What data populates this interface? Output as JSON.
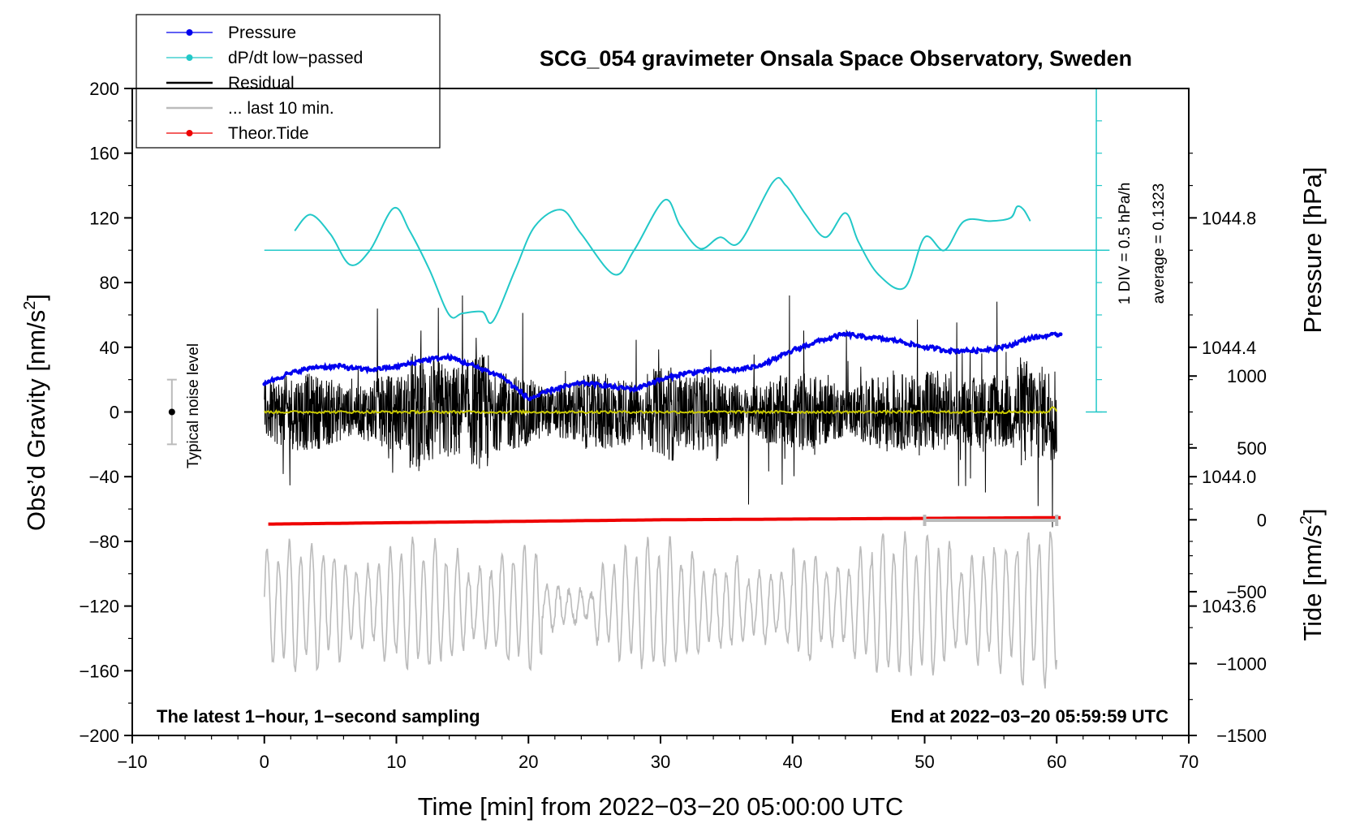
{
  "chart_data": {
    "type": "line",
    "title": "SCG_054 gravimeter Onsala Space Observatory, Sweden",
    "xlabel": "Time [min] from 2022−03−20 05:00:00 UTC",
    "ylabel_main": "Obs’d Gravity [nm/s",
    "ylabel_main_sup": "2",
    "ylabel_main_end": "]",
    "ylabel_pressure": "Pressure [hPa]",
    "ylabel_tide": "Tide [nm/s",
    "ylabel_tide_sup": "2",
    "ylabel_tide_end": "]",
    "xlim": [
      -10,
      70
    ],
    "ylim": [
      -200,
      200
    ],
    "pressure_lim": [
      1043.2,
      1045.2
    ],
    "tide_lim": [
      -1500,
      3000
    ],
    "x_ticks": [
      -10,
      0,
      10,
      20,
      30,
      40,
      50,
      60,
      70
    ],
    "x_tick_labels": [
      "−10",
      "0",
      "10",
      "20",
      "30",
      "40",
      "50",
      "60",
      "70"
    ],
    "y_ticks": [
      -200,
      -160,
      -120,
      -80,
      -40,
      0,
      40,
      80,
      120,
      160,
      200
    ],
    "y_tick_labels": [
      "−200",
      "−160",
      "−120",
      "−80",
      "−40",
      "0",
      "40",
      "80",
      "120",
      "160",
      "200"
    ],
    "pressure_ticks": [
      1043.6,
      1044.0,
      1044.4,
      1044.8
    ],
    "pressure_tick_labels": [
      "1043.6",
      "1044.0",
      "1044.4",
      "1044.8"
    ],
    "tide_ticks": [
      -1500,
      -1000,
      -500,
      0,
      500,
      1000
    ],
    "tide_tick_labels": [
      "−1500",
      "−1000",
      "−500",
      "0",
      "500",
      "1000"
    ],
    "legend": [
      {
        "label": "Pressure",
        "color": "#0000ee",
        "marker": true
      },
      {
        "label": "dP/dt low−passed",
        "color": "#22c8c8",
        "marker": true
      },
      {
        "label": "Residual",
        "color": "#000000",
        "marker": false
      },
      {
        "label": "... last 10 min.",
        "color": "#bbbbbb",
        "marker": false
      },
      {
        "label": "Theor.Tide",
        "color": "#ee0000",
        "marker": true
      }
    ],
    "series": [
      {
        "name": "Pressure",
        "axis": "pressure",
        "color": "#0000ee",
        "x": [
          0,
          2,
          4,
          6,
          8,
          10,
          12,
          14,
          16,
          18,
          20,
          22,
          24,
          26,
          28,
          30,
          32,
          34,
          36,
          38,
          40,
          42,
          44,
          46,
          48,
          50,
          52,
          54,
          56,
          58,
          60.3
        ],
        "values": [
          1044.29,
          1044.32,
          1044.34,
          1044.34,
          1044.33,
          1044.34,
          1044.36,
          1044.37,
          1044.34,
          1044.31,
          1044.24,
          1044.27,
          1044.29,
          1044.28,
          1044.27,
          1044.3,
          1044.32,
          1044.33,
          1044.33,
          1044.35,
          1044.39,
          1044.42,
          1044.44,
          1044.43,
          1044.42,
          1044.4,
          1044.39,
          1044.39,
          1044.4,
          1044.43,
          1044.44
        ]
      },
      {
        "name": "dP/dt low−passed",
        "axis": "main",
        "color": "#22c8c8",
        "x": [
          2.3,
          3.5,
          5,
          6.5,
          8,
          9.8,
          11,
          12.5,
          14,
          15,
          16.5,
          17.3,
          19,
          20.5,
          22.5,
          24,
          26.5,
          28,
          30.3,
          31.5,
          33,
          34.5,
          36,
          38.5,
          39.5,
          41,
          42.5,
          44,
          45,
          46.5,
          48.5,
          50,
          51.5,
          53,
          55,
          56.5,
          57,
          57.5,
          58
        ],
        "values": [
          112,
          122,
          110,
          91,
          100,
          126,
          112,
          88,
          60,
          61,
          62,
          56,
          88,
          115,
          125,
          110,
          85,
          100,
          131,
          115,
          101,
          108,
          105,
          142,
          140,
          122,
          108,
          123,
          105,
          85,
          77,
          108,
          100,
          118,
          118,
          120,
          127,
          125,
          118
        ]
      },
      {
        "name": "Residual",
        "axis": "main",
        "color": "#000000",
        "x": [
          0,
          5,
          10,
          15,
          20,
          25,
          30,
          35,
          40,
          45,
          50,
          55,
          60
        ],
        "values": [
          0,
          0,
          0,
          0,
          0,
          0,
          0,
          0,
          0,
          0,
          0,
          0,
          0
        ]
      },
      {
        "name": "Theor.Tide",
        "axis": "tide",
        "color": "#ee0000",
        "x": [
          0.3,
          10,
          20,
          30,
          40,
          50,
          60.3
        ],
        "values": [
          -30,
          -20,
          -10,
          0,
          5,
          10,
          15
        ]
      }
    ],
    "pressure_rate_reference": 100,
    "annotations": {
      "left_note": "The latest 1−hour, 1−second sampling",
      "right_note": "End at 2022−03−20 05:59:59 UTC",
      "scale_div": "1 DIV = 0.5 hPa/h",
      "scale_avg": "average = 0.1323",
      "noise_label": "Typical noise level"
    },
    "noise_bar": {
      "x": -7,
      "center": 0,
      "half_range": 20
    },
    "last10_marker": {
      "x_start": 50,
      "x_end": 60,
      "y": -67
    },
    "dpdt_scale": {
      "x": 63,
      "y_bottom": 0,
      "y_top": 200
    }
  }
}
